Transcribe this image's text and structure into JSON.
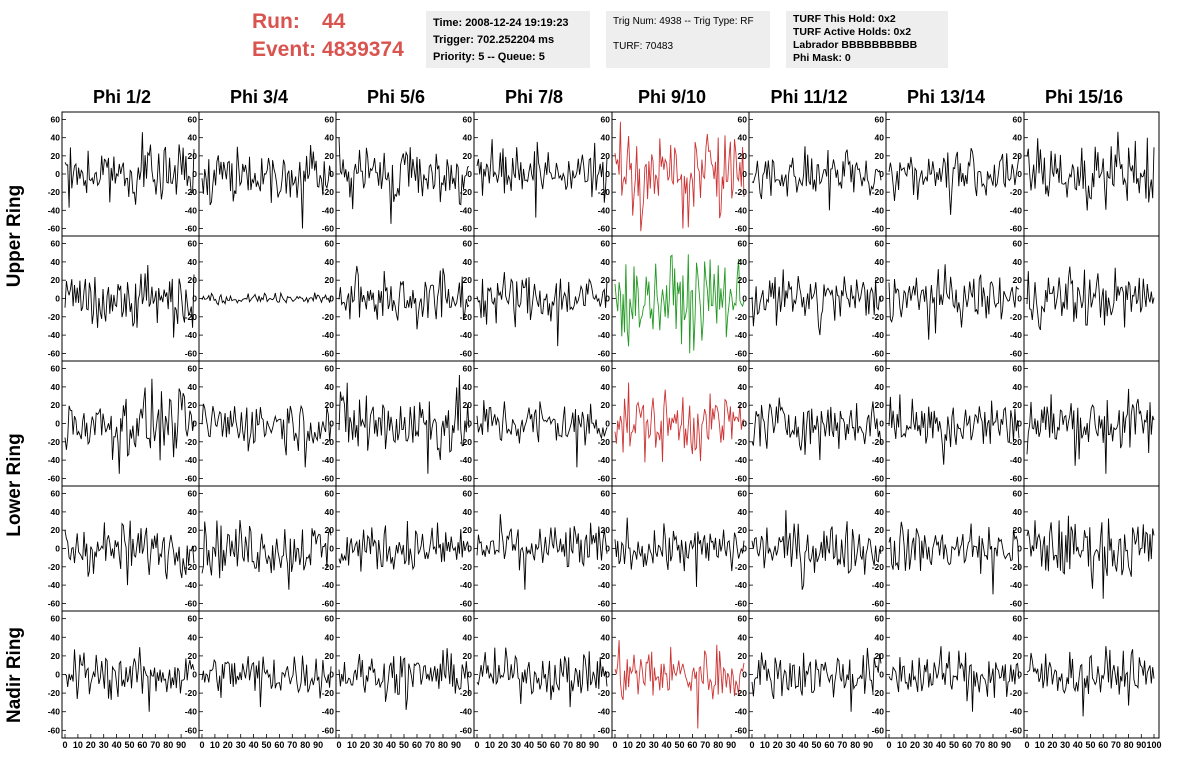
{
  "header": {
    "run_label": "Run:",
    "run_value": "44",
    "event_label": "Event:",
    "event_value": "4839374",
    "colors": {
      "run_text": "#d9534f",
      "info_bg": "#eeeeee"
    }
  },
  "info_box_1": {
    "time": "Time: 2008-12-24 19:19:23",
    "trigger": "Trigger: 702.252204 ms",
    "priority": "Priority: 5 -- Queue: 5"
  },
  "info_box_2": {
    "trig": "Trig Num: 4938 -- Trig Type: RF",
    "turf": "TURF: 70483"
  },
  "info_box_3": {
    "hold": "TURF This Hold: 0x2",
    "active": "TURF Active Holds: 0x2",
    "labrador": "Labrador BBBBBBBBBB",
    "phi_mask": "Phi Mask: 0"
  },
  "columns": [
    "Phi 1/2",
    "Phi 3/4",
    "Phi 5/6",
    "Phi 7/8",
    "Phi 9/10",
    "Phi 11/12",
    "Phi 13/14",
    "Phi 15/16"
  ],
  "ring_labels": [
    "Upper Ring",
    "Lower Ring",
    "Nadir Ring"
  ],
  "chart_data": {
    "type": "line",
    "grid": false,
    "xlim": [
      0,
      100
    ],
    "ylim": [
      -65,
      65
    ],
    "x_tick_labels": [
      "0",
      "10",
      "20",
      "30",
      "40",
      "50",
      "60",
      "70",
      "80",
      "90",
      "100"
    ],
    "y_tick_labels": [
      "60",
      "40",
      "20",
      "0",
      "-20",
      "-40",
      "-60"
    ],
    "colors": {
      "default": "#000000",
      "triggered_h": "#cc3333",
      "triggered_v": "#229922"
    },
    "panel_rows": 5,
    "panel_cols": 8,
    "trace_points": 96,
    "highlighted_panels": [
      {
        "row": 0,
        "col": 4,
        "color": "#cc3333"
      },
      {
        "row": 1,
        "col": 4,
        "color": "#229922"
      },
      {
        "row": 2,
        "col": 4,
        "color": "#cc3333"
      },
      {
        "row": 4,
        "col": 4,
        "color": "#cc3333"
      }
    ],
    "panel_amplitudes": [
      [
        15,
        14,
        16,
        14,
        25,
        13,
        14,
        17
      ],
      [
        18,
        3,
        16,
        15,
        22,
        14,
        14,
        16
      ],
      [
        18,
        14,
        20,
        14,
        18,
        14,
        15,
        17
      ],
      [
        14,
        15,
        13,
        14,
        13,
        15,
        14,
        17
      ],
      [
        13,
        12,
        12,
        12,
        15,
        13,
        13,
        13
      ]
    ],
    "panel_peaks": [
      [
        46,
        -60,
        -55,
        -48,
        -60,
        -40,
        -45,
        30
      ],
      [
        27,
        6,
        30,
        -52,
        -60,
        -40,
        -45,
        35
      ],
      [
        -55,
        -48,
        -55,
        -48,
        -42,
        -40,
        -45,
        -55
      ],
      [
        -40,
        -45,
        30,
        -45,
        -42,
        -45,
        -50,
        -55
      ],
      [
        -40,
        -35,
        -38,
        -35,
        -58,
        -40,
        -40,
        -45
      ]
    ]
  }
}
